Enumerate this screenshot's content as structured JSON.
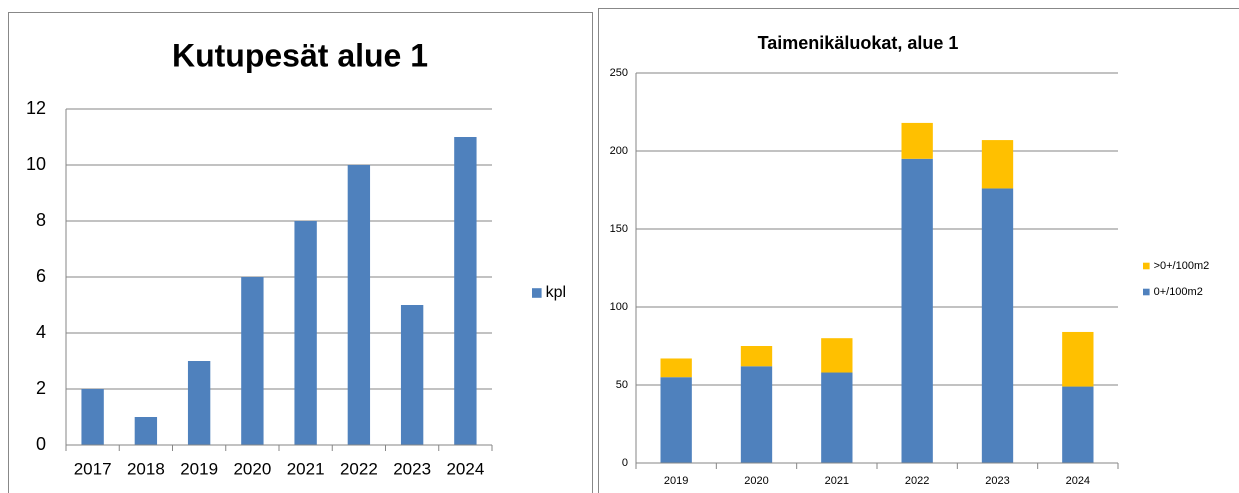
{
  "chart_data": [
    {
      "type": "bar",
      "title": "Kutupesät alue 1",
      "categories": [
        "2017",
        "2018",
        "2019",
        "2020",
        "2021",
        "2022",
        "2023",
        "2024"
      ],
      "series": [
        {
          "name": "kpl",
          "color": "#4f81bd",
          "values": [
            2,
            1,
            3,
            6,
            8,
            10,
            5,
            11
          ]
        }
      ],
      "ylim": [
        0,
        12
      ],
      "yticks": [
        0,
        2,
        4,
        6,
        8,
        10,
        12
      ],
      "grid": true,
      "legend": "right"
    },
    {
      "type": "stacked_bar",
      "title": "Taimenikäluokat, alue 1",
      "categories": [
        "2019",
        "2020",
        "2021",
        "2022",
        "2023",
        "2024"
      ],
      "series": [
        {
          "name": "0+/100m2",
          "color": "#4f81bd",
          "values": [
            55,
            62,
            58,
            195,
            176,
            49
          ]
        },
        {
          "name": ">0+/100m2",
          "color": "#ffc000",
          "values": [
            12,
            13,
            22,
            23,
            31,
            35
          ]
        }
      ],
      "ylim": [
        0,
        250
      ],
      "yticks": [
        0,
        50,
        100,
        150,
        200,
        250
      ],
      "grid": true,
      "legend": "right"
    }
  ]
}
